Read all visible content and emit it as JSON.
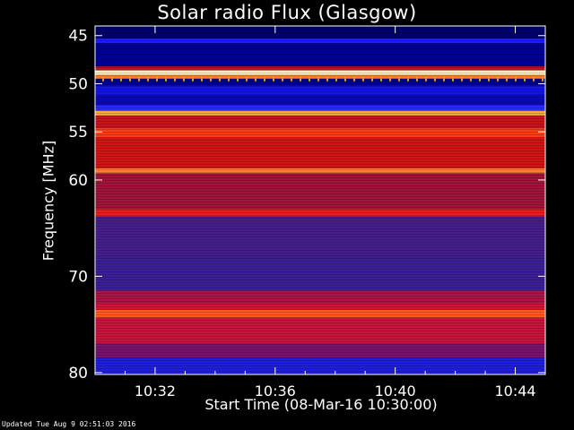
{
  "chart_data": {
    "type": "heatmap",
    "title": "Solar radio Flux (Glasgow)",
    "xlabel": "Start Time (08-Mar-16 10:30:00)",
    "ylabel": "Frequency [MHz]",
    "footer": "Updated Tue Aug  9 02:51:03 2016",
    "x_ticks": [
      "10:32",
      "10:36",
      "10:40",
      "10:44"
    ],
    "x_tick_minutes": [
      2,
      6,
      10,
      14
    ],
    "x_range_minutes": [
      0,
      15
    ],
    "y_ticks": [
      45,
      50,
      55,
      60,
      70,
      80
    ],
    "y_range": [
      44,
      80.2
    ],
    "colormap": [
      "#000000",
      "#0000ff",
      "#ff0000",
      "#ffff00",
      "#ffffff"
    ],
    "bands": [
      {
        "from": 44.0,
        "to": 45.3,
        "color": "#00006a"
      },
      {
        "from": 45.3,
        "to": 45.8,
        "color": "#1c1cff"
      },
      {
        "from": 45.8,
        "to": 48.2,
        "color": "#000096"
      },
      {
        "from": 48.2,
        "to": 48.6,
        "color": "#b4142a"
      },
      {
        "from": 48.6,
        "to": 49.1,
        "color": "#fff0c8"
      },
      {
        "from": 49.1,
        "to": 49.5,
        "color": "#ff7a1e"
      },
      {
        "from": 49.5,
        "to": 50.2,
        "color": "#00008c"
      },
      {
        "from": 50.2,
        "to": 51.2,
        "color": "#1414e6"
      },
      {
        "from": 51.2,
        "to": 52.2,
        "color": "#0a0ab4"
      },
      {
        "from": 52.2,
        "to": 52.8,
        "color": "#2828ff"
      },
      {
        "from": 52.8,
        "to": 53.3,
        "color": "#ffaa32"
      },
      {
        "from": 53.3,
        "to": 54.6,
        "color": "#c8141e"
      },
      {
        "from": 54.6,
        "to": 55.6,
        "color": "#ff3c14"
      },
      {
        "from": 55.6,
        "to": 58.8,
        "color": "#d21414"
      },
      {
        "from": 58.8,
        "to": 59.3,
        "color": "#ff8232"
      },
      {
        "from": 59.3,
        "to": 63.0,
        "color": "#a0143c"
      },
      {
        "from": 63.0,
        "to": 63.8,
        "color": "#e61e1e"
      },
      {
        "from": 63.8,
        "to": 68.0,
        "color": "#461e8c"
      },
      {
        "from": 68.0,
        "to": 71.5,
        "color": "#3c1e96"
      },
      {
        "from": 71.5,
        "to": 72.8,
        "color": "#aa1446"
      },
      {
        "from": 72.8,
        "to": 73.5,
        "color": "#d2143c"
      },
      {
        "from": 73.5,
        "to": 74.3,
        "color": "#ff5a1e"
      },
      {
        "from": 74.3,
        "to": 77.0,
        "color": "#c8143c"
      },
      {
        "from": 77.0,
        "to": 78.5,
        "color": "#78146e"
      },
      {
        "from": 78.5,
        "to": 80.2,
        "color": "#1e1edc"
      }
    ]
  }
}
